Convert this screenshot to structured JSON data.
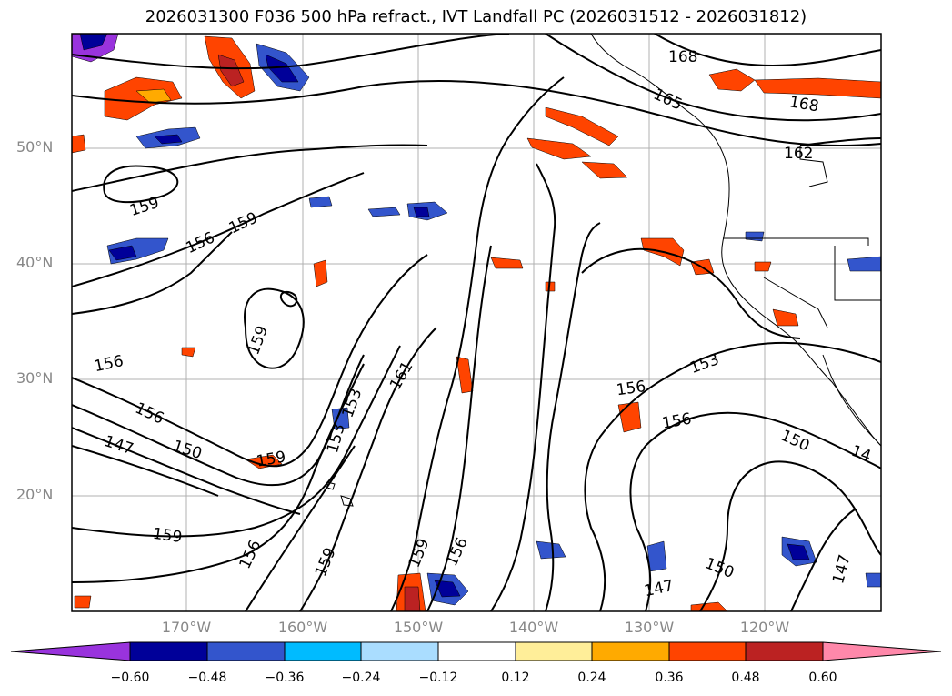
{
  "title": "2026031300 F036 500 hPa refract., IVT Landfall PC (2026031512 - 2026031812)",
  "lat_labels": [
    "50°N",
    "40°N",
    "30°N",
    "20°N"
  ],
  "lon_labels": [
    "170°W",
    "160°W",
    "150°W",
    "140°W",
    "130°W",
    "120°W"
  ],
  "colorbar": {
    "ticks": [
      "−0.60",
      "−0.48",
      "−0.36",
      "−0.24",
      "−0.12",
      "0.12",
      "0.24",
      "0.36",
      "0.48",
      "0.60"
    ],
    "colors": [
      "#9933dd",
      "#000099",
      "#3355cc",
      "#00bbff",
      "#aaddff",
      "#ffffff",
      "#ffee99",
      "#ffaa00",
      "#ff4400",
      "#bb2222",
      "#ff88aa"
    ]
  },
  "contour_labels": [
    "168",
    "165",
    "168",
    "162",
    "159",
    "156",
    "159",
    "159",
    "156",
    "156",
    "147",
    "150",
    "159",
    "153",
    "153",
    "161",
    "159",
    "156",
    "159",
    "156",
    "159",
    "156",
    "153",
    "156",
    "150",
    "147",
    "147",
    "150",
    "14"
  ]
}
